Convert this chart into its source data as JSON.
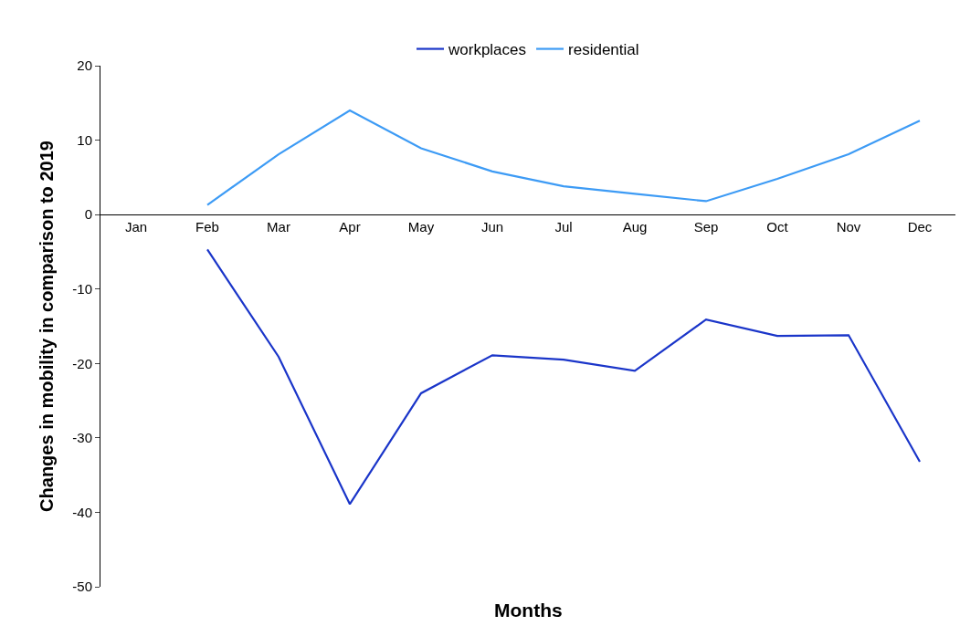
{
  "chart_data": {
    "type": "line",
    "xlabel": "Months",
    "ylabel": "Changes in mobility in comparison to 2019",
    "categories": [
      "Jan",
      "Feb",
      "Mar",
      "Apr",
      "May",
      "Jun",
      "Jul",
      "Aug",
      "Sep",
      "Oct",
      "Nov",
      "Dec"
    ],
    "series": [
      {
        "name": "workplaces",
        "color": "#1a35c9",
        "values": [
          null,
          -4.7,
          -19.1,
          -38.9,
          -24.0,
          -18.9,
          -19.5,
          -21.0,
          -14.1,
          -16.3,
          -16.2,
          -33.2
        ]
      },
      {
        "name": "residential",
        "color": "#3d9bf5",
        "values": [
          null,
          1.3,
          8.1,
          14.0,
          8.9,
          5.8,
          3.8,
          2.8,
          1.8,
          4.8,
          8.1,
          12.6
        ]
      }
    ],
    "ylim": [
      -50,
      20
    ],
    "yticks": [
      -50,
      -40,
      -30,
      -20,
      -10,
      0,
      10,
      20
    ],
    "legend": "top",
    "marker": "none",
    "line_style": "solid"
  }
}
